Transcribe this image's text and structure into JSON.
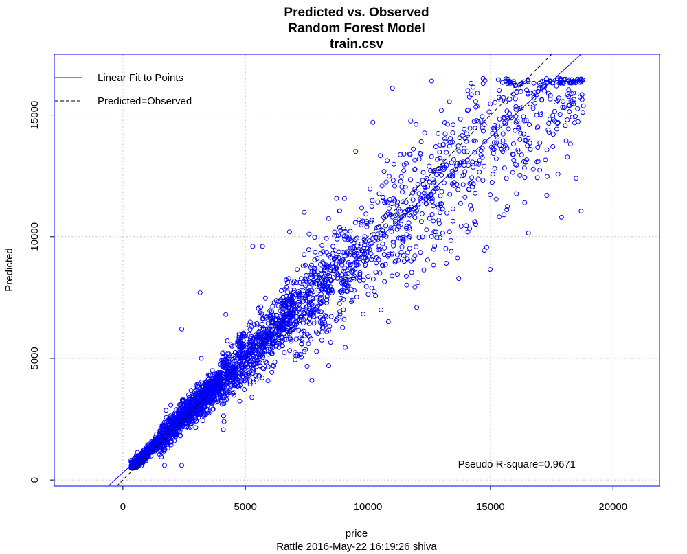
{
  "chart_data": {
    "type": "scatter",
    "title": [
      "Predicted vs. Observed",
      "Random Forest Model",
      "train.csv"
    ],
    "xlabel": "price",
    "ylabel": "Predicted",
    "subtitle": "Rattle 2016-May-22 16:19:26 shiva",
    "annotation": "Pseudo R-square=0.9671",
    "xlim": [
      -2800,
      21900
    ],
    "ylim": [
      -250,
      17500
    ],
    "xticks": [
      0,
      5000,
      10000,
      15000,
      20000
    ],
    "yticks": [
      0,
      5000,
      10000,
      15000
    ],
    "grid": true,
    "legend_position": "top-left",
    "legend": [
      {
        "label": "Linear Fit to Points",
        "style": "solid"
      },
      {
        "label": "Predicted=Observed",
        "style": "dashed"
      }
    ],
    "fit_line": {
      "intercept": 300,
      "slope": 0.92
    },
    "identity_line": {
      "intercept": 0,
      "slope": 1
    },
    "colors": {
      "points": "#0000ff",
      "fit_line": "#0000ff",
      "identity_line": "#000000",
      "frame": "#0000ff",
      "grid": "#c8c8c8"
    },
    "point_groups": [
      {
        "x_range": [
          330,
          1500
        ],
        "slope": 1.0,
        "noise": 120,
        "count": 450
      },
      {
        "x_range": [
          1500,
          4000
        ],
        "slope": 0.98,
        "noise": 320,
        "count": 900
      },
      {
        "x_range": [
          4000,
          7000
        ],
        "slope": 0.97,
        "noise": 620,
        "count": 700
      },
      {
        "x_range": [
          7000,
          10000
        ],
        "slope": 0.95,
        "noise": 1000,
        "count": 420
      },
      {
        "x_range": [
          10000,
          13000
        ],
        "slope": 0.93,
        "noise": 1400,
        "count": 260
      },
      {
        "x_range": [
          13000,
          16000
        ],
        "slope": 0.92,
        "noise": 1600,
        "count": 210
      },
      {
        "x_range": [
          16000,
          18800
        ],
        "slope": 0.88,
        "noise": 1300,
        "count": 180
      }
    ],
    "points": [
      [
        14990,
        8650
      ],
      [
        16550,
        10150
      ],
      [
        15550,
        10900
      ],
      [
        18700,
        11050
      ],
      [
        17900,
        10800
      ],
      [
        18500,
        12400
      ],
      [
        3150,
        7700
      ],
      [
        11000,
        16100
      ],
      [
        14700,
        16500
      ],
      [
        18200,
        16550
      ],
      [
        12600,
        16400
      ],
      [
        16400,
        11400
      ],
      [
        13500,
        12100
      ],
      [
        12700,
        10200
      ],
      [
        8400,
        4700
      ],
      [
        2400,
        6200
      ],
      [
        4200,
        6800
      ],
      [
        17300,
        11700
      ],
      [
        10200,
        14700
      ],
      [
        9500,
        13500
      ],
      [
        5700,
        9600
      ],
      [
        5300,
        9600
      ],
      [
        13400,
        9400
      ],
      [
        11700,
        13400
      ],
      [
        6800,
        10200
      ],
      [
        7400,
        11000
      ],
      [
        9000,
        7000
      ],
      [
        3200,
        5000
      ],
      [
        1700,
        600
      ],
      [
        2400,
        600
      ],
      [
        14700,
        16300
      ],
      [
        16200,
        16250
      ],
      [
        17000,
        16300
      ],
      [
        12500,
        12900
      ],
      [
        15500,
        13500
      ]
    ]
  }
}
